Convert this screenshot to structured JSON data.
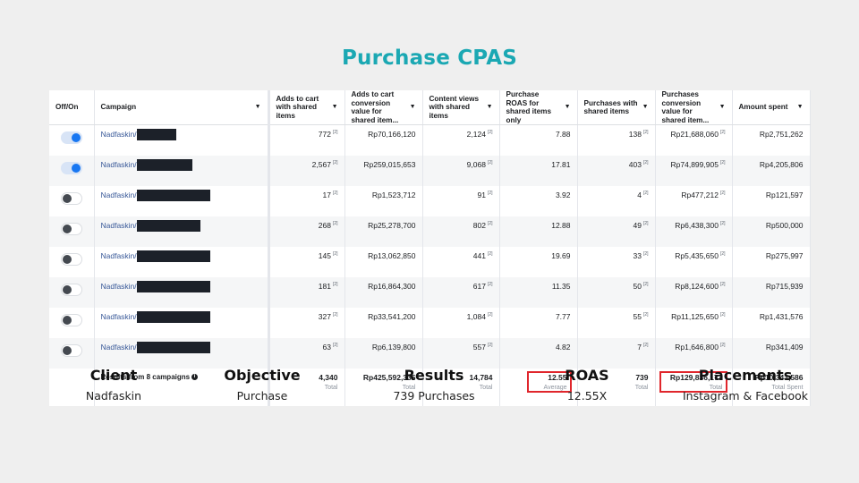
{
  "title": "Purchase CPAS",
  "colors": {
    "title": "#1ba8b3",
    "link": "#385898",
    "toggle_on": "#1877f2",
    "highlight": "#e0262c"
  },
  "table": {
    "headers": [
      "Off/On",
      "Campaign",
      "Adds to cart with shared items",
      "Adds to cart conversion value for shared item...",
      "Content views with shared items",
      "Purchase ROAS for shared items only",
      "Purchases with shared items",
      "Purchases conversion value for shared item...",
      "Amount spent"
    ],
    "rows": [
      {
        "on": true,
        "campaign": "Nadfaskin/",
        "redact_w": 44,
        "atc": "772",
        "atc_value": "Rp70,166,120",
        "content_views": "2,124",
        "roas": "7.88",
        "purchases": "138",
        "purchase_value": "Rp21,688,060",
        "spent": "Rp2,751,262"
      },
      {
        "on": true,
        "campaign": "Nadfaskin/",
        "redact_w": 62,
        "atc": "2,567",
        "atc_value": "Rp259,015,653",
        "content_views": "9,068",
        "roas": "17.81",
        "purchases": "403",
        "purchase_value": "Rp74,899,905",
        "spent": "Rp4,205,806"
      },
      {
        "on": false,
        "campaign": "Nadfaskin/",
        "redact_w": 82,
        "atc": "17",
        "atc_value": "Rp1,523,712",
        "content_views": "91",
        "roas": "3.92",
        "purchases": "4",
        "purchase_value": "Rp477,212",
        "spent": "Rp121,597"
      },
      {
        "on": false,
        "campaign": "Nadfaskin/",
        "redact_w": 71,
        "atc": "268",
        "atc_value": "Rp25,278,700",
        "content_views": "802",
        "roas": "12.88",
        "purchases": "49",
        "purchase_value": "Rp6,438,300",
        "spent": "Rp500,000"
      },
      {
        "on": false,
        "campaign": "Nadfaskin/",
        "redact_w": 82,
        "atc": "145",
        "atc_value": "Rp13,062,850",
        "content_views": "441",
        "roas": "19.69",
        "purchases": "33",
        "purchase_value": "Rp5,435,650",
        "spent": "Rp275,997"
      },
      {
        "on": false,
        "campaign": "Nadfaskin/",
        "redact_w": 82,
        "atc": "181",
        "atc_value": "Rp16,864,300",
        "content_views": "617",
        "roas": "11.35",
        "purchases": "50",
        "purchase_value": "Rp8,124,600",
        "spent": "Rp715,939"
      },
      {
        "on": false,
        "campaign": "Nadfaskin/",
        "redact_w": 82,
        "atc": "327",
        "atc_value": "Rp33,541,200",
        "content_views": "1,084",
        "roas": "7.77",
        "purchases": "55",
        "purchase_value": "Rp11,125,650",
        "spent": "Rp1,431,576"
      },
      {
        "on": false,
        "campaign": "Nadfaskin/",
        "redact_w": 82,
        "atc": "63",
        "atc_value": "Rp6,139,800",
        "content_views": "557",
        "roas": "4.82",
        "purchases": "7",
        "purchase_value": "Rp1,646,800",
        "spent": "Rp341,409"
      }
    ],
    "footnote_marker": "[2]",
    "totals": {
      "label": "Results from 8 campaigns",
      "info_icon": "i",
      "atc": "4,340",
      "atc_sub": "Total",
      "atc_value": "Rp425,592,335",
      "atc_value_sub": "Total",
      "content_views": "14,784",
      "content_views_sub": "Total",
      "roas": "12.55",
      "roas_sub": "Average",
      "purchases": "739",
      "purchases_sub": "Total",
      "purchase_value": "Rp129,836,177",
      "purchase_value_sub": "Total",
      "spent": "Rp10,343,586",
      "spent_sub": "Total Spent"
    }
  },
  "summary": [
    {
      "label": "Client",
      "value": "Nadfaskin"
    },
    {
      "label": "Objective",
      "value": "Purchase"
    },
    {
      "label": "Results",
      "value": "739 Purchases"
    },
    {
      "label": "ROAS",
      "value": "12.55X"
    },
    {
      "label": "Placements",
      "value": "Instagram & Facebook"
    }
  ]
}
